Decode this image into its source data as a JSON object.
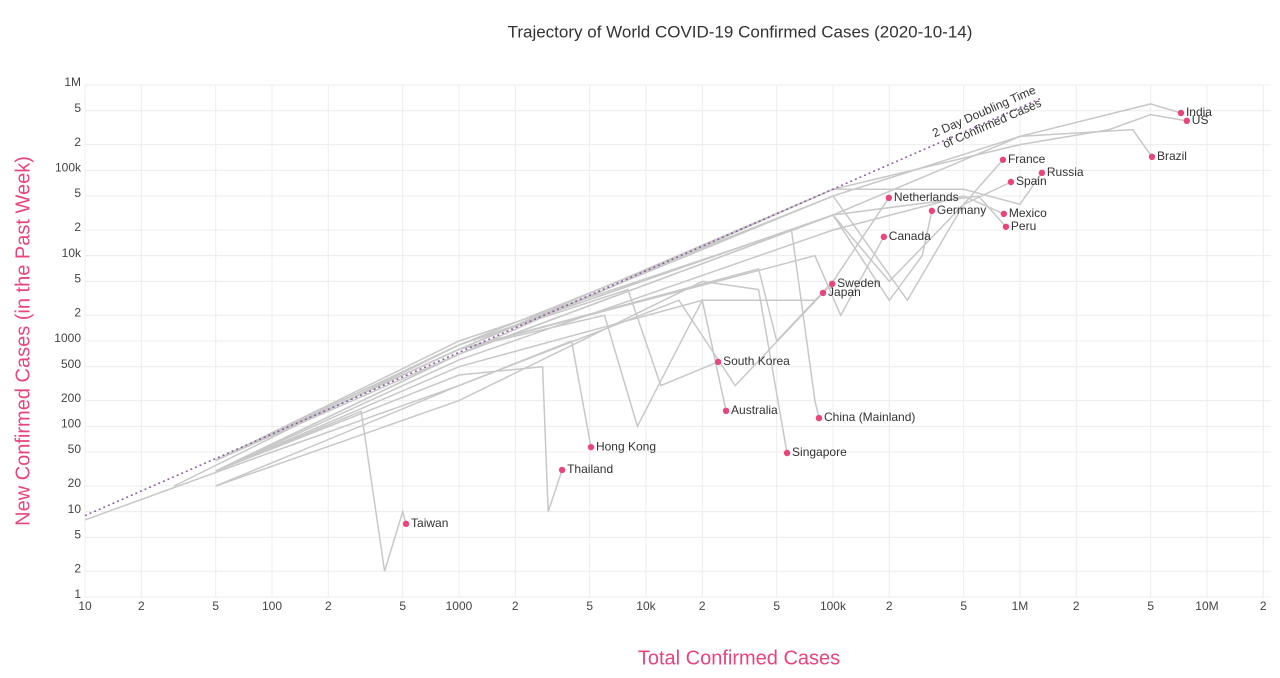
{
  "chart_data": {
    "type": "scatter",
    "title": "Trajectory of World COVID-19 Confirmed Cases (2020-10-14)",
    "x_label": "Total Confirmed Cases",
    "y_label": "New Confirmed Cases (in the Past Week)",
    "log_x": true,
    "log_y": true,
    "grid": true,
    "color": "#e8457c",
    "line_color": "#c8c8c8",
    "xlim": [
      10,
      22000000
    ],
    "ylim": [
      1,
      1000000
    ],
    "xticks": [
      10,
      {
        "value": 20,
        "label": "2"
      },
      {
        "value": 50,
        "label": "5"
      },
      100,
      {
        "value": 200,
        "label": "2"
      },
      {
        "value": 500,
        "label": "5"
      },
      1000,
      {
        "value": 2000,
        "label": "2"
      },
      {
        "value": 5000,
        "label": "5"
      },
      {
        "value": 10000,
        "label": "10k"
      },
      {
        "value": 20000,
        "label": "2"
      },
      {
        "value": 50000,
        "label": "5"
      },
      {
        "value": 100000,
        "label": "100k"
      },
      {
        "value": 200000,
        "label": "2"
      },
      {
        "value": 500000,
        "label": "5"
      },
      {
        "value": 1000000,
        "label": "1M"
      },
      {
        "value": 2000000,
        "label": "2"
      },
      {
        "value": 5000000,
        "label": "5"
      },
      {
        "value": 10000000,
        "label": "10M"
      },
      {
        "value": 20000000,
        "label": "2"
      }
    ],
    "yticks": [
      1,
      2,
      5,
      10,
      20,
      50,
      100,
      200,
      500,
      1000,
      {
        "value": 2000,
        "label": "2"
      },
      {
        "value": 5000,
        "label": "5"
      },
      {
        "value": 10000,
        "label": "10k"
      },
      {
        "value": 20000,
        "label": "2"
      },
      {
        "value": 50000,
        "label": "5"
      },
      {
        "value": 100000,
        "label": "100k"
      },
      {
        "value": 200000,
        "label": "2"
      },
      {
        "value": 500000,
        "label": "5"
      },
      {
        "value": 1000000,
        "label": "1M"
      }
    ],
    "labels": [
      "India",
      "US",
      "Brazil",
      "France",
      "Russia",
      "Spain",
      "Netherlands",
      "Germany",
      "Mexico",
      "Peru",
      "Canada",
      "Sweden",
      "Japan",
      "South Korea",
      "Australia",
      "China (Mainland)",
      "Hong Kong",
      "Singapore",
      "Thailand",
      "Taiwan"
    ],
    "x": [
      7260000,
      7800000,
      5080000,
      811000,
      1310000,
      895000,
      199000,
      338000,
      820000,
      841000,
      187000,
      99000,
      88500,
      24300,
      26800,
      84200,
      5080,
      56800,
      3560,
      521
    ],
    "y": [
      470000,
      380000,
      144000,
      133000,
      93500,
      73000,
      47600,
      33500,
      30900,
      21800,
      16600,
      4670,
      3660,
      569,
      152,
      125,
      57,
      48.7,
      30.8,
      7.2
    ],
    "trajectories": [
      {
        "x": [
          50,
          1000,
          100000,
          1000000,
          5000000,
          7260000
        ],
        "y": [
          40,
          700,
          30000,
          250000,
          600000,
          470000
        ]
      },
      {
        "x": [
          50,
          1000,
          100000,
          1000000,
          3000000,
          5000000,
          7800000
        ],
        "y": [
          40,
          800,
          60000,
          200000,
          300000,
          450000,
          380000
        ]
      },
      {
        "x": [
          50,
          1000,
          100000,
          1000000,
          4000000,
          5080000
        ],
        "y": [
          40,
          800,
          50000,
          250000,
          300000,
          144000
        ]
      },
      {
        "x": [
          50,
          1000,
          100000,
          200000,
          500000,
          811000
        ],
        "y": [
          40,
          900,
          30000,
          5000,
          40000,
          133000
        ]
      },
      {
        "x": [
          50,
          1000,
          100000,
          500000,
          1000000,
          1310000
        ],
        "y": [
          30,
          700,
          60000,
          60000,
          40000,
          93500
        ]
      },
      {
        "x": [
          50,
          1000,
          100000,
          250000,
          500000,
          895000
        ],
        "y": [
          40,
          900,
          50000,
          3000,
          40000,
          73000
        ]
      },
      {
        "x": [
          50,
          1000,
          40000,
          50000,
          100000,
          199000
        ],
        "y": [
          40,
          800,
          7000,
          1000,
          5000,
          47600
        ]
      },
      {
        "x": [
          50,
          1000,
          100000,
          200000,
          300000,
          338000
        ],
        "y": [
          40,
          900,
          30000,
          3000,
          10000,
          33500
        ]
      },
      {
        "x": [
          50,
          1000,
          100000,
          500000,
          820000
        ],
        "y": [
          30,
          600,
          20000,
          50000,
          30900
        ]
      },
      {
        "x": [
          50,
          1000,
          100000,
          600000,
          841000
        ],
        "y": [
          30,
          700,
          30000,
          50000,
          21800
        ]
      },
      {
        "x": [
          50,
          1000,
          80000,
          110000,
          187000
        ],
        "y": [
          40,
          800,
          10000,
          2000,
          16600
        ]
      },
      {
        "x": [
          50,
          1000,
          20000,
          80000,
          99000
        ],
        "y": [
          30,
          500,
          3000,
          3000,
          4670
        ]
      },
      {
        "x": [
          50,
          1000,
          15000,
          30000,
          88500
        ],
        "y": [
          20,
          300,
          3000,
          300,
          3660
        ]
      },
      {
        "x": [
          30,
          1000,
          8000,
          12000,
          24300
        ],
        "y": [
          20,
          900,
          4000,
          300,
          569
        ]
      },
      {
        "x": [
          50,
          1000,
          6000,
          9000,
          20000,
          26800
        ],
        "y": [
          40,
          800,
          2000,
          100,
          3000,
          152
        ]
      },
      {
        "x": [
          50,
          1000,
          60000,
          80000,
          84200
        ],
        "y": [
          40,
          1000,
          20000,
          200,
          125
        ]
      },
      {
        "x": [
          10,
          100,
          1000,
          4000,
          5080
        ],
        "y": [
          8,
          50,
          300,
          1000,
          57
        ]
      },
      {
        "x": [
          50,
          1000,
          20000,
          40000,
          56800
        ],
        "y": [
          20,
          200,
          5000,
          4000,
          48.7
        ]
      },
      {
        "x": [
          50,
          1000,
          2800,
          3000,
          3560
        ],
        "y": [
          30,
          400,
          500,
          10,
          30.8
        ]
      },
      {
        "x": [
          50,
          300,
          400,
          500,
          521
        ],
        "y": [
          30,
          150,
          2,
          10,
          7.2
        ]
      }
    ],
    "doubling": {
      "color": "#8a5a9a",
      "x": [
        10,
        1300000
      ],
      "y": [
        9,
        700000
      ]
    },
    "annotation": [
      "2 Day Doubling Time",
      "of Confirmed Cases"
    ]
  }
}
